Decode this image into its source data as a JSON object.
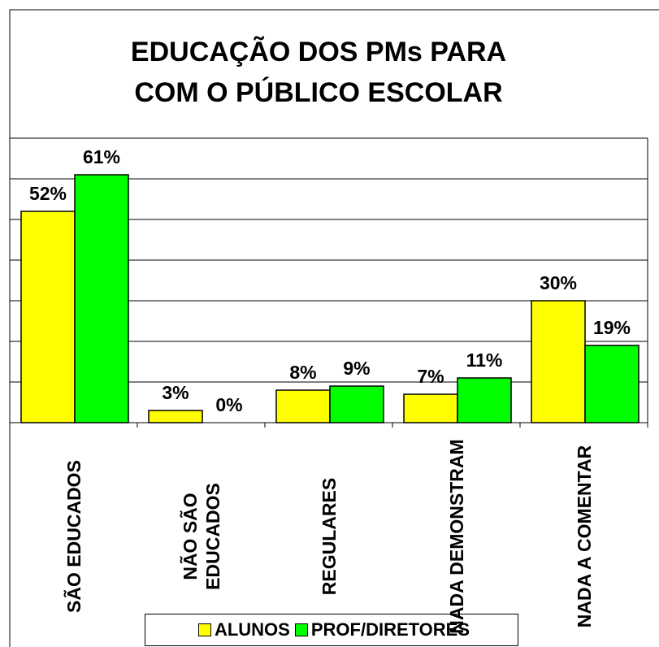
{
  "chart_data": {
    "type": "bar",
    "title": "EDUCAÇÃO DOS PMs PARA COM O PÚBLICO ESCOLAR",
    "categories": [
      "SÃO EDUCADOS",
      "NÃO SÃO EDUCADOS",
      "REGULARES",
      "NADA DEMONSTRAM",
      "NADA A COMENTAR"
    ],
    "series": [
      {
        "name": "ALUNOS",
        "color": "#ffff00",
        "values": [
          52,
          3,
          8,
          7,
          30
        ],
        "value_labels": [
          "52%",
          "3%",
          "8%",
          "7%",
          "30%"
        ]
      },
      {
        "name": "PROF/DIRETORES",
        "color": "#00ff00",
        "values": [
          61,
          0,
          9,
          11,
          19
        ],
        "value_labels": [
          "61%",
          "0%",
          "9%",
          "11%",
          "19%"
        ]
      }
    ],
    "ylim": [
      0,
      70
    ],
    "yticks": [
      0,
      10,
      20,
      30,
      40,
      50,
      60,
      70
    ],
    "grid": true
  }
}
